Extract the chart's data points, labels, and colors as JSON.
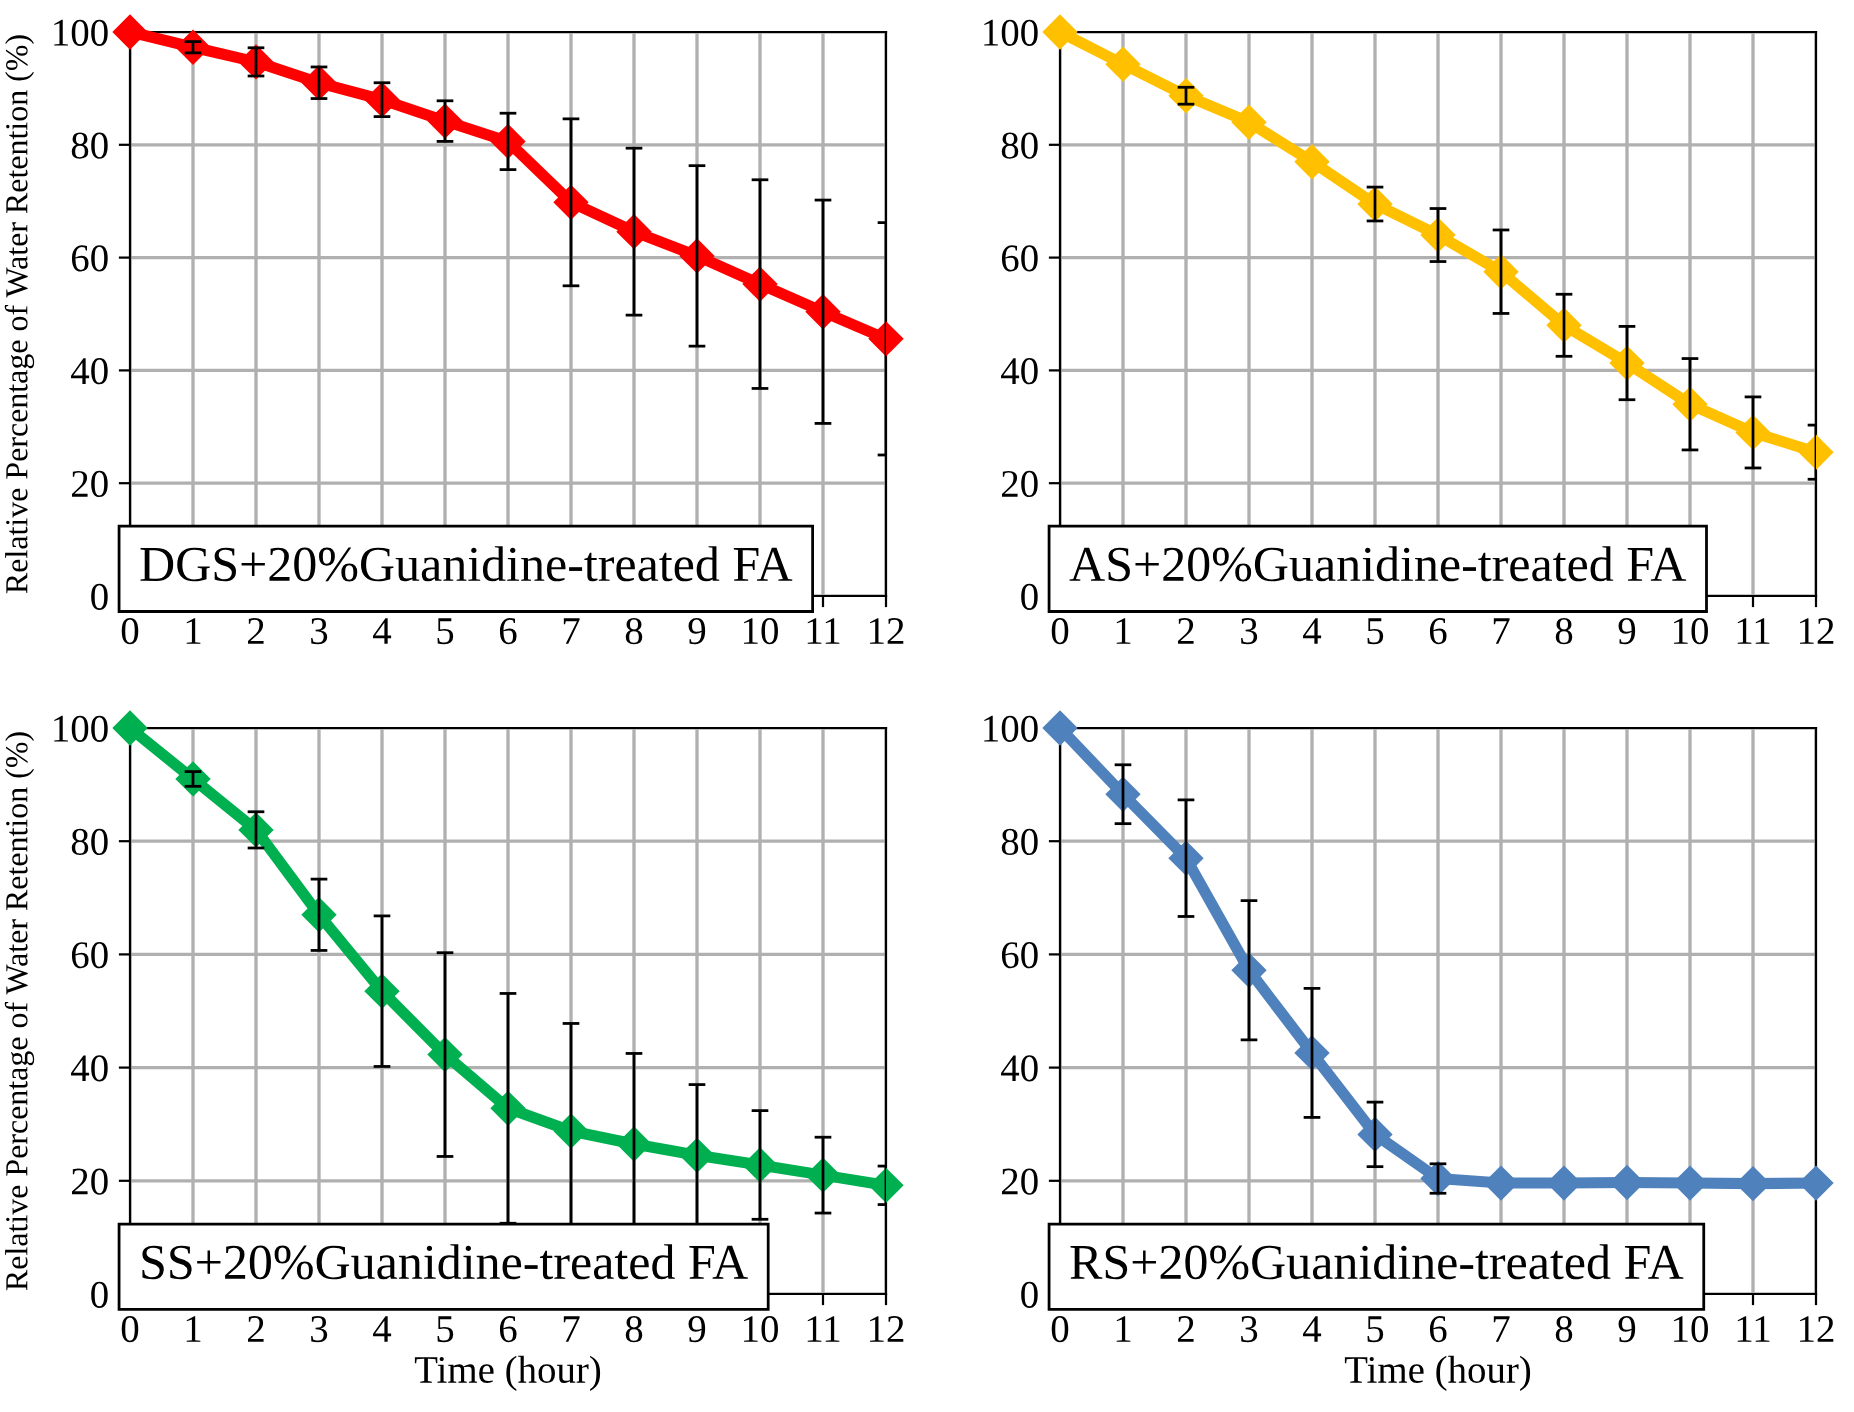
{
  "chart_data": [
    {
      "type": "line",
      "x": [
        0,
        1,
        2,
        3,
        4,
        5,
        6,
        7,
        8,
        9,
        10,
        11,
        12
      ],
      "ylabel": "Relative Percentage of Water Retention (%)",
      "annotations": [
        "DGS+20%Guanidine-treated FA"
      ],
      "xlim": [
        0,
        12
      ],
      "xticks": [
        0,
        1,
        2,
        3,
        4,
        5,
        6,
        7,
        8,
        9,
        10,
        11,
        12
      ],
      "ylim": [
        0,
        100
      ],
      "yticks": [
        0,
        20,
        40,
        60,
        80,
        100
      ],
      "grid": true,
      "marker": "diamond",
      "line_style": "solid",
      "series": [
        {
          "color": "#ff0000",
          "values": [
            100,
            97.3,
            94.7,
            91,
            88,
            84.2,
            80.6,
            69.8,
            64.6,
            60.3,
            55.3,
            50.4,
            45.6
          ],
          "errors": [
            null,
            1,
            2.5,
            2.8,
            3,
            3.6,
            5,
            14.8,
            14.8,
            16,
            18.5,
            19.8,
            20.6
          ]
        }
      ]
    },
    {
      "type": "line",
      "x": [
        0,
        1,
        2,
        3,
        4,
        5,
        6,
        7,
        8,
        9,
        10,
        11,
        12
      ],
      "annotations": [
        "AS+20%Guanidine-treated FA"
      ],
      "xlim": [
        0,
        12
      ],
      "xticks": [
        0,
        1,
        2,
        3,
        4,
        5,
        6,
        7,
        8,
        9,
        10,
        11,
        12
      ],
      "ylim": [
        0,
        100
      ],
      "yticks": [
        0,
        20,
        40,
        60,
        80,
        100
      ],
      "grid": true,
      "marker": "diamond",
      "line_style": "solid",
      "series": [
        {
          "color": "#ffc000",
          "values": [
            100,
            94.3,
            88.7,
            84,
            77,
            69.5,
            64,
            57.5,
            48,
            41.3,
            34,
            29,
            25.5
          ],
          "errors": [
            null,
            null,
            1.5,
            null,
            null,
            3,
            4.7,
            7.4,
            5.5,
            6.5,
            8.1,
            6.3,
            4.8
          ]
        }
      ]
    },
    {
      "type": "line",
      "x": [
        0,
        1,
        2,
        3,
        4,
        5,
        6,
        7,
        8,
        9,
        10,
        11,
        12
      ],
      "xlabel": "Time (hour)",
      "ylabel": "Relative Percentage of Water Retention (%)",
      "annotations": [
        "SS+20%Guanidine-treated FA"
      ],
      "xlim": [
        0,
        12
      ],
      "xticks": [
        0,
        1,
        2,
        3,
        4,
        5,
        6,
        7,
        8,
        9,
        10,
        11,
        12
      ],
      "ylim": [
        0,
        100
      ],
      "yticks": [
        0,
        20,
        40,
        60,
        80,
        100
      ],
      "grid": true,
      "marker": "diamond",
      "line_style": "solid",
      "series": [
        {
          "color": "#00b050",
          "values": [
            100,
            91,
            82,
            67,
            53.5,
            42.3,
            32.8,
            28.8,
            26.5,
            24.5,
            22.8,
            21,
            19.2
          ],
          "errors": [
            null,
            1.3,
            3.2,
            6.3,
            13.3,
            18,
            20.3,
            19,
            16,
            12.5,
            9.6,
            6.7,
            3.4
          ]
        }
      ]
    },
    {
      "type": "line",
      "x": [
        0,
        1,
        2,
        3,
        4,
        5,
        6,
        7,
        8,
        9,
        10,
        11,
        12
      ],
      "xlabel": "Time (hour)",
      "annotations": [
        "RS+20%Guanidine-treated FA"
      ],
      "xlim": [
        0,
        12
      ],
      "xticks": [
        0,
        1,
        2,
        3,
        4,
        5,
        6,
        7,
        8,
        9,
        10,
        11,
        12
      ],
      "ylim": [
        0,
        100
      ],
      "yticks": [
        0,
        20,
        40,
        60,
        80,
        100
      ],
      "grid": true,
      "marker": "diamond",
      "line_style": "solid",
      "series": [
        {
          "color": "#4f81bd",
          "values": [
            100,
            88.3,
            77,
            57.2,
            42.6,
            28.2,
            20.4,
            19.6,
            19.6,
            19.7,
            19.6,
            19.5,
            19.6
          ],
          "errors": [
            null,
            5.2,
            10.3,
            12.3,
            11.4,
            5.7,
            2.6,
            null,
            null,
            null,
            null,
            null,
            null
          ]
        }
      ]
    }
  ]
}
